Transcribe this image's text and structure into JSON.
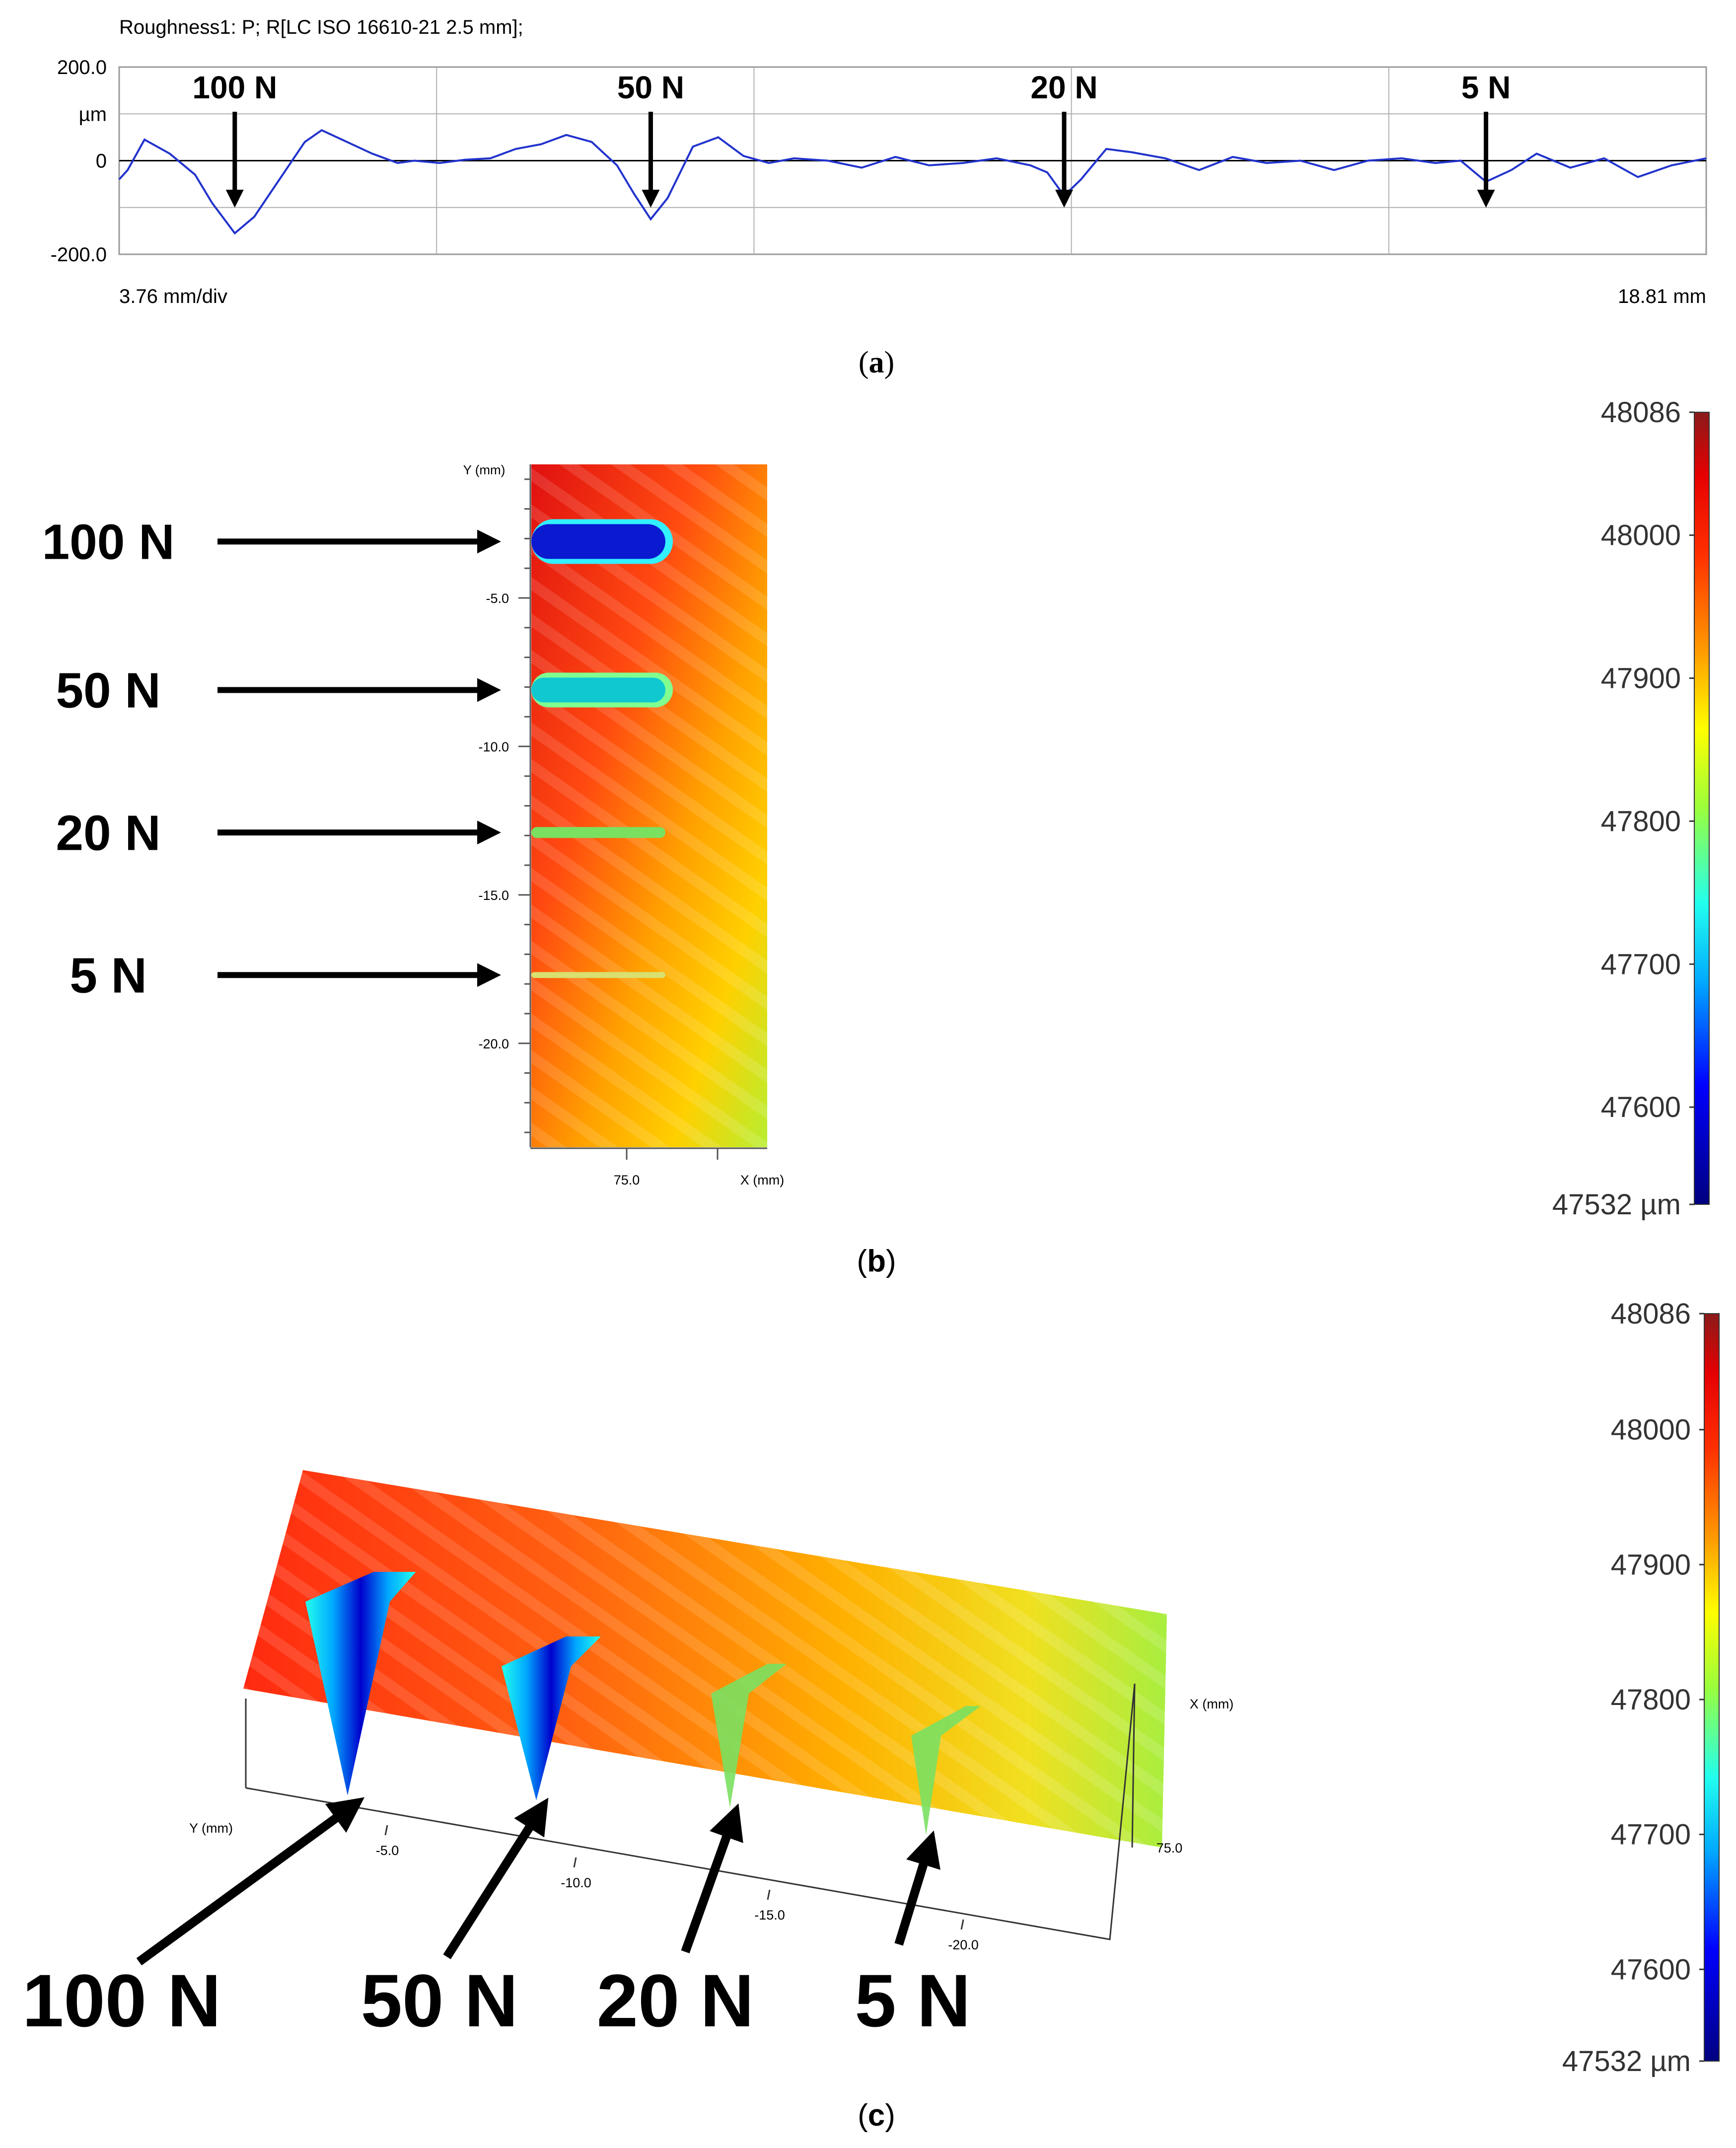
{
  "panel_a": {
    "title": "Roughness1: P; R[LC ISO 16610-21 2.5 mm];",
    "x_scale": "3.76 mm/div",
    "x_end": "18.81 mm",
    "caption": "a"
  },
  "panel_b": {
    "caption": "b",
    "y_axis_title": "Y (mm)",
    "x_axis_title": "X (mm)"
  },
  "panel_c": {
    "caption": "c",
    "y_axis_title": "Y (mm)",
    "x_axis_title": "X (mm)"
  },
  "colors": {
    "profile_line": "#2233cc",
    "colormap": [
      "#00007f",
      "#0000ff",
      "#00a8ff",
      "#22ffee",
      "#9aff3c",
      "#ffff00",
      "#ffb000",
      "#ff4000",
      "#e60000",
      "#8b1a1a"
    ]
  },
  "chart_data": [
    {
      "type": "line",
      "title": "Roughness1: P; R[LC ISO 16610-21 2.5 mm];",
      "ylabel": "µm",
      "ylim": [
        -200.0,
        200.0
      ],
      "y_ticks": [
        "200.0",
        "µm",
        "0",
        "-200.0"
      ],
      "xlim": [
        0,
        18.81
      ],
      "grid": true,
      "annotations": [
        {
          "label": "100 N",
          "x": 1.37
        },
        {
          "label": "50 N",
          "x": 6.3
        },
        {
          "label": "20 N",
          "x": 11.2
        },
        {
          "label": "5 N",
          "x": 16.2
        }
      ],
      "x": [
        0,
        0.1,
        0.3,
        0.6,
        0.9,
        1.1,
        1.37,
        1.6,
        1.9,
        2.2,
        2.4,
        2.7,
        3.0,
        3.3,
        3.5,
        3.8,
        4.1,
        4.4,
        4.7,
        5.0,
        5.3,
        5.6,
        5.9,
        6.1,
        6.3,
        6.5,
        6.8,
        7.1,
        7.4,
        7.7,
        8.0,
        8.4,
        8.8,
        9.2,
        9.6,
        10.0,
        10.4,
        10.8,
        11.0,
        11.2,
        11.4,
        11.7,
        12.0,
        12.4,
        12.8,
        13.2,
        13.6,
        14.0,
        14.4,
        14.8,
        15.2,
        15.6,
        15.9,
        16.2,
        16.5,
        16.8,
        17.2,
        17.6,
        18.0,
        18.4,
        18.81
      ],
      "y": [
        -40,
        -20,
        45,
        15,
        -30,
        -90,
        -155,
        -120,
        -40,
        40,
        65,
        40,
        15,
        -5,
        0,
        -5,
        2,
        5,
        25,
        35,
        55,
        40,
        -10,
        -70,
        -125,
        -80,
        30,
        50,
        10,
        -5,
        5,
        0,
        -15,
        8,
        -10,
        -5,
        5,
        -10,
        -25,
        -75,
        -40,
        25,
        18,
        5,
        -20,
        8,
        -5,
        0,
        -20,
        0,
        5,
        -5,
        0,
        -45,
        -20,
        15,
        -15,
        5,
        -35,
        -10,
        5
      ]
    },
    {
      "type": "heatmap",
      "xlabel": "X (mm)",
      "ylabel": "Y (mm)",
      "x_ticks": [
        "75.0"
      ],
      "y_ticks": [
        "-5.0",
        "-10.0",
        "-15.0",
        "-20.0"
      ],
      "colorbar": {
        "min_label": "47532 µm",
        "max_label": "48086",
        "ticks": [
          "48086",
          "48000",
          "47900",
          "47800",
          "47700",
          "47600",
          "47532 µm"
        ],
        "min": 47532,
        "max": 48086
      },
      "scratches": [
        {
          "label": "100 N",
          "y": -3.1
        },
        {
          "label": "50 N",
          "y": -8.1
        },
        {
          "label": "20 N",
          "y": -12.9
        },
        {
          "label": "5 N",
          "y": -17.7
        }
      ]
    },
    {
      "type": "heatmap",
      "view": "3d",
      "xlabel": "X (mm)",
      "ylabel": "Y (mm)",
      "x_ticks": [
        "75.0"
      ],
      "y_ticks": [
        "-5.0",
        "-10.0",
        "-15.0",
        "-20.0"
      ],
      "colorbar": {
        "min_label": "47532 µm",
        "max_label": "48086",
        "ticks": [
          "48086",
          "48000",
          "47900",
          "47800",
          "47700",
          "47600",
          "47532 µm"
        ],
        "min": 47532,
        "max": 48086
      },
      "scratches": [
        {
          "label": "100 N"
        },
        {
          "label": "50 N"
        },
        {
          "label": "20 N"
        },
        {
          "label": "5 N"
        }
      ]
    }
  ]
}
